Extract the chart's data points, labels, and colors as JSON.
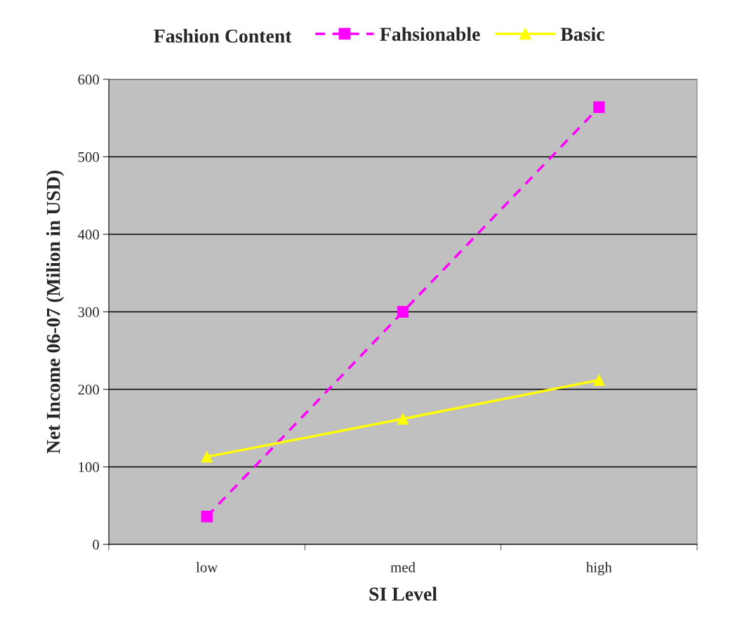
{
  "chart_data": {
    "type": "line",
    "xlabel": "SI Level",
    "ylabel": "Net Income 06-07 (Milion in USD)",
    "legend_title": "Fashion Content",
    "categories": [
      "low",
      "med",
      "high"
    ],
    "series": [
      {
        "name": "Fahsionable",
        "color": "#ff00ff",
        "values": [
          36,
          300,
          564
        ],
        "marker": "square",
        "line_style": "dashed"
      },
      {
        "name": "Basic",
        "color": "#ffff00",
        "values": [
          113,
          162,
          212
        ],
        "marker": "triangle",
        "line_style": "solid"
      }
    ],
    "ylim": [
      0,
      600
    ],
    "yticks": [
      0,
      100,
      200,
      300,
      400,
      500,
      600
    ],
    "grid": "y",
    "legend": "top"
  }
}
